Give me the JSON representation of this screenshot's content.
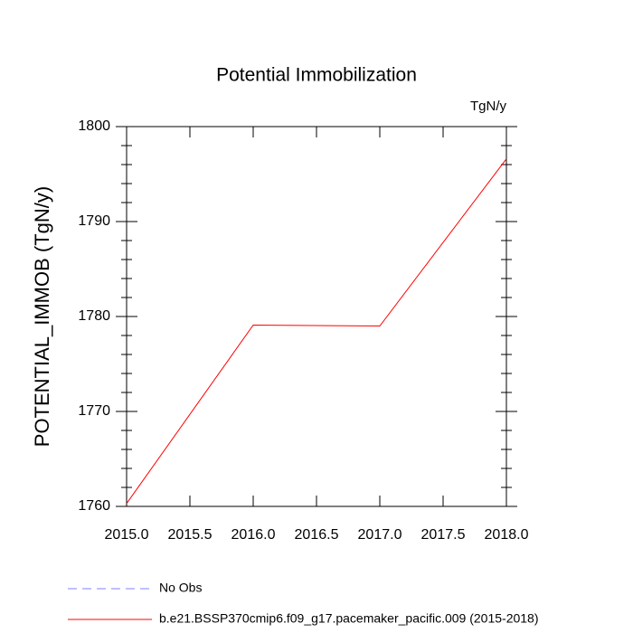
{
  "chart_data": {
    "type": "line",
    "title": "Potential Immobilization",
    "units": "TgN/y",
    "ylabel": "POTENTIAL_IMMOB  (TgN/y)",
    "x": [
      2015,
      2016,
      2017,
      2018
    ],
    "series": [
      {
        "name": "b.e21.BSSP370cmip6.f09_g17.pacemaker_pacific.009 (2015-2018)",
        "color": "#ff0000",
        "values": [
          1760.3,
          1779.1,
          1779.0,
          1796.6
        ]
      }
    ],
    "extra_legend": [
      {
        "name": "No Obs",
        "color": "#8080ff",
        "style": "dashed"
      }
    ],
    "xlim": [
      2015,
      2018
    ],
    "xticks": [
      {
        "value": 2015,
        "label": "2015.0"
      },
      {
        "value": 2015.5,
        "label": "2015.5"
      },
      {
        "value": 2016,
        "label": "2016.0"
      },
      {
        "value": 2016.5,
        "label": "2016.5"
      },
      {
        "value": 2017,
        "label": "2017.0"
      },
      {
        "value": 2017.5,
        "label": "2017.5"
      },
      {
        "value": 2018,
        "label": "2018.0"
      }
    ],
    "ylim": [
      1760,
      1800
    ],
    "yticks": [
      1760,
      1770,
      1780,
      1790,
      1800
    ],
    "yminorticks": [
      1762,
      1764,
      1766,
      1768,
      1772,
      1774,
      1776,
      1778,
      1782,
      1784,
      1786,
      1788,
      1792,
      1794,
      1796,
      1798
    ],
    "grid": false
  }
}
